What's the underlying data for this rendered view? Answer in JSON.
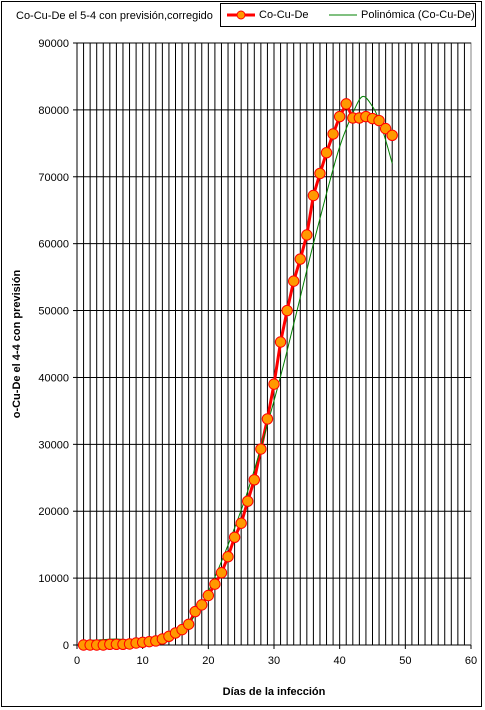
{
  "chart_data": {
    "type": "line",
    "title": "Co-Cu-De el 5-4 con previsión,corregido",
    "xlabel": "Días de la infección",
    "ylabel": "o-Cu-De el 4-4 con previsión",
    "xlim": [
      0,
      60
    ],
    "ylim": [
      0,
      90000
    ],
    "x_ticks": [
      0,
      10,
      20,
      30,
      40,
      50,
      60
    ],
    "y_ticks": [
      0,
      10000,
      20000,
      30000,
      40000,
      50000,
      60000,
      70000,
      80000,
      90000
    ],
    "grid": true,
    "legend_position": "top-right",
    "series": [
      {
        "name": "Co-Cu-De",
        "color": "#ff0000",
        "marker_color": "#ff9900",
        "x": [
          1,
          2,
          3,
          4,
          5,
          6,
          7,
          8,
          9,
          10,
          11,
          12,
          13,
          14,
          15,
          16,
          17,
          18,
          19,
          20,
          21,
          22,
          23,
          24,
          25,
          26,
          27,
          28,
          29,
          30,
          31,
          32,
          33,
          34,
          35,
          36,
          37,
          38,
          39,
          40,
          41,
          42,
          43,
          44,
          45,
          46,
          47,
          48
        ],
        "y": [
          0,
          0,
          0,
          0,
          100,
          100,
          100,
          150,
          300,
          400,
          500,
          600,
          900,
          1300,
          1800,
          2300,
          3100,
          5000,
          6000,
          7400,
          9100,
          10800,
          13200,
          16100,
          18200,
          21500,
          24700,
          29300,
          33800,
          39000,
          45300,
          50000,
          54400,
          57700,
          61300,
          67200,
          70500,
          73600,
          76400,
          79000,
          80900,
          78800,
          78800,
          79000,
          78700,
          78400,
          77200,
          76200
        ]
      },
      {
        "name": "Polinómica (Co-Cu-De)",
        "color": "#008000",
        "x": [
          2,
          4,
          6,
          8,
          10,
          12,
          14,
          16,
          18,
          20,
          22,
          24,
          26,
          28,
          30,
          32,
          34,
          36,
          38,
          40,
          42,
          43.5,
          45,
          46,
          47,
          48
        ],
        "y": [
          700,
          800,
          900,
          700,
          400,
          200,
          600,
          2000,
          4500,
          8000,
          12500,
          17500,
          23000,
          29500,
          36500,
          44000,
          52000,
          60000,
          67500,
          74500,
          79500,
          82000,
          80500,
          78500,
          75500,
          72000
        ]
      }
    ]
  }
}
